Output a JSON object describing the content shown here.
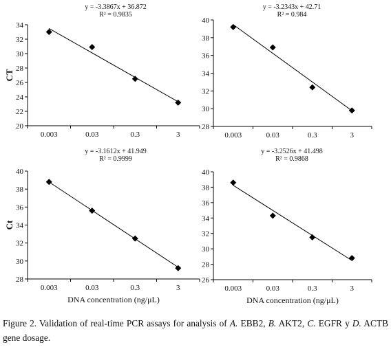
{
  "caption": {
    "prefix": "Figure 2. Validation of real-time PCR assays for analysis of ",
    "a": "A.",
    "t1": " EBB2, ",
    "b": "B.",
    "t2": " AKT2, ",
    "c": "C.",
    "t3": " EGFR y ",
    "d": "D.",
    "t4": " ACTB gene dosage."
  },
  "chart_data": [
    {
      "type": "scatter",
      "equation": "y = -3.3867x + 36.872",
      "r_squared": "R² = 0.9835",
      "xlabel": "",
      "ylabel": "CT",
      "categories": [
        "0.003",
        "0.03",
        "0.3",
        "3"
      ],
      "values": [
        33.0,
        30.9,
        26.5,
        23.2
      ],
      "trendline": {
        "slope": -3.3867,
        "intercept": 36.872
      },
      "ylim": [
        20,
        34
      ],
      "yticks": [
        20,
        22,
        24,
        26,
        28,
        30,
        32,
        34
      ],
      "grid": false
    },
    {
      "type": "scatter",
      "equation": "y = -3.2343x + 42.71",
      "r_squared": "R² = 0.984",
      "xlabel": "",
      "ylabel": "",
      "categories": [
        "0.003",
        "0.03",
        "0.3",
        "3"
      ],
      "values": [
        39.2,
        36.9,
        32.4,
        29.8
      ],
      "trendline": {
        "slope": -3.2343,
        "intercept": 42.71
      },
      "ylim": [
        28,
        40
      ],
      "yticks": [
        28,
        30,
        32,
        34,
        36,
        38,
        40
      ],
      "grid": false
    },
    {
      "type": "scatter",
      "equation": "y = -3.1612x + 41.949",
      "r_squared": "R² = 0.9999",
      "xlabel": "DNA concentration (ng/μL)",
      "ylabel": "Ct",
      "categories": [
        "0.003",
        "0.03",
        "0.3",
        "3"
      ],
      "values": [
        38.8,
        35.6,
        32.5,
        29.2
      ],
      "trendline": {
        "slope": -3.1612,
        "intercept": 41.949
      },
      "ylim": [
        28,
        40
      ],
      "yticks": [
        28,
        30,
        32,
        34,
        36,
        38,
        40
      ],
      "grid": false
    },
    {
      "type": "scatter",
      "equation": "y = -3.2526x + 41.498",
      "r_squared": "R² = 0.9868",
      "xlabel": "DNA concentration (ng/μL)",
      "ylabel": "",
      "categories": [
        "0.003",
        "0.03",
        "0.3",
        "3"
      ],
      "values": [
        38.6,
        34.3,
        31.5,
        28.8
      ],
      "trendline": {
        "slope": -3.2526,
        "intercept": 41.498
      },
      "ylim": [
        26,
        40
      ],
      "yticks": [
        26,
        28,
        30,
        32,
        34,
        36,
        38,
        40
      ],
      "grid": false
    }
  ]
}
